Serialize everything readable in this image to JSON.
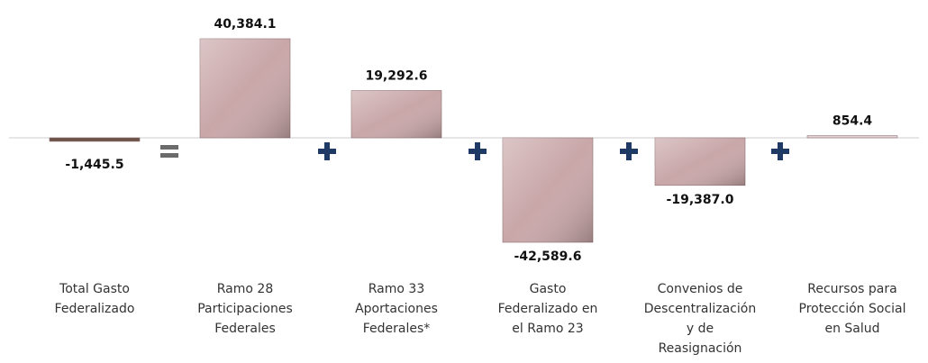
{
  "chart_data": {
    "type": "bar",
    "categories": [
      [
        "Total Gasto",
        "Federalizado"
      ],
      [
        "Ramo 28",
        "Participaciones",
        "Federales"
      ],
      [
        "Ramo 33",
        "Aportaciones",
        "Federales*"
      ],
      [
        "Gasto",
        "Federalizado en",
        "el Ramo 23"
      ],
      [
        "Convenios de",
        "Descentralización",
        "y de",
        "Reasignación"
      ],
      [
        "Recursos para",
        "Protección Social",
        "en Salud"
      ]
    ],
    "values": [
      -1445.5,
      40384.1,
      19292.6,
      -42589.6,
      -19387.0,
      854.4
    ],
    "value_labels": [
      "-1,445.5",
      "40,384.1",
      "19,292.6",
      "-42,589.6",
      "-19,387.0",
      "854.4"
    ],
    "colors": [
      "#6e5246",
      "#c9a7a9",
      "#c9a7a9",
      "#c9a7a9",
      "#c9a7a9",
      "#e3d3d4"
    ]
  }
}
